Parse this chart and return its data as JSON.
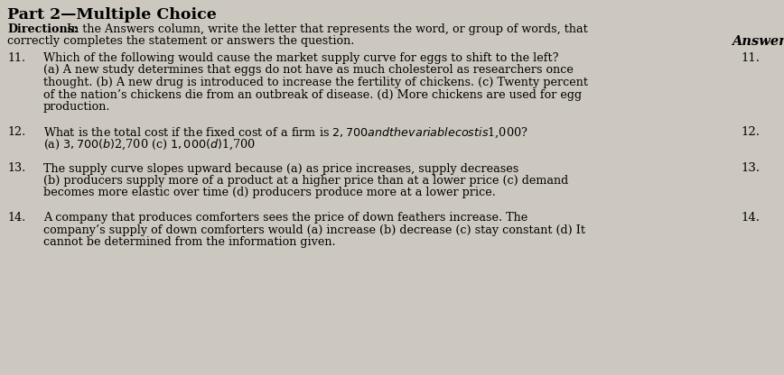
{
  "bg_color": "#cdc8bf",
  "title": "Part 2—Multiple Choice",
  "directions_bold": "Directions:",
  "directions_rest": " In the Answers column, write the letter that represents the word, or group of words, that",
  "directions_line2": "correctly completes the statement or answers the question.",
  "answers_header": "Answers",
  "questions": [
    {
      "num": "11.",
      "lines": [
        "Which of the following would cause the market supply curve for eggs to shift to the left?",
        "(a) A new study determines that eggs do not have as much cholesterol as researchers once",
        "thought. (b) A new drug is introduced to increase the fertility of chickens. (c) Twenty percent",
        "of the nation’s chickens die from an outbreak of disease. (d) More chickens are used for egg",
        "production."
      ],
      "answer_num": "11."
    },
    {
      "num": "12.",
      "lines": [
        "What is the total cost if the fixed cost of a firm is $2,700 and the variable cost is $1,000?",
        "(a) $3,700 (b) $2,700 (c) $1,000 (d) $1,700"
      ],
      "answer_num": "12."
    },
    {
      "num": "13.",
      "lines": [
        "The supply curve slopes upward because (a) as price increases, supply decreases",
        "(b) producers supply more of a product at a higher price than at a lower price (c) demand",
        "becomes more elastic over time (d) producers produce more at a lower price."
      ],
      "answer_num": "13."
    },
    {
      "num": "14.",
      "lines": [
        "A company that produces comforters sees the price of down feathers increase. The",
        "company’s supply of down comforters would (a) increase (b) decrease (c) stay constant (d) It",
        "cannot be determined from the information given."
      ],
      "answer_num": "14."
    }
  ],
  "fs_title": 12.5,
  "fs_body": 9.2,
  "fs_answers_header": 10.5,
  "fs_ans_num": 9.5
}
